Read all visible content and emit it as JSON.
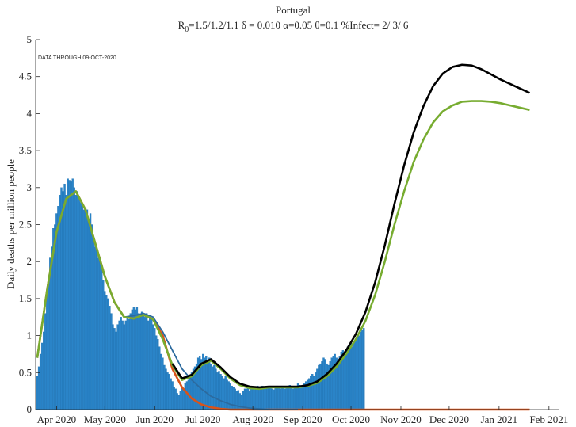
{
  "chart_data": {
    "type": "bar",
    "title": "Portugal",
    "subtitle": [
      "R",
      "0",
      "=1.5/1.2/1.1  δ = 0.010  α=0.05  θ=0.1  %Infect= 2/ 3/ 6"
    ],
    "annotation": "DATA THROUGH 09-OCT-2020",
    "ylabel": "Daily deaths per million people",
    "color": "#2a84c8",
    "x": [
      1,
      2,
      3,
      4,
      5,
      6,
      7,
      8,
      9,
      10,
      11,
      12,
      13,
      14,
      15,
      16,
      17,
      18,
      19,
      20,
      21,
      22,
      23,
      24,
      25,
      26,
      27,
      28,
      29,
      30,
      31,
      32,
      33,
      34,
      35,
      36,
      37,
      38,
      39,
      40,
      41,
      42,
      43,
      44,
      45,
      46,
      47,
      48,
      49,
      50,
      51,
      52,
      53,
      54,
      55,
      56,
      57,
      58,
      59,
      60,
      61,
      62,
      63,
      64,
      65,
      66,
      67,
      68,
      69,
      70,
      71,
      72,
      73,
      74,
      75,
      76,
      77,
      78,
      79,
      80,
      81,
      82,
      83,
      84,
      85,
      86,
      87,
      88,
      89,
      90,
      91,
      92,
      93,
      94,
      95,
      96,
      97,
      98,
      99,
      100,
      101,
      102,
      103,
      104,
      105,
      106,
      107,
      108,
      109,
      110,
      111,
      112,
      113,
      114,
      115,
      116,
      117,
      118,
      119,
      120,
      121,
      122,
      123,
      124,
      125,
      126,
      127,
      128,
      129,
      130,
      131,
      132,
      133,
      134,
      135,
      136,
      137,
      138,
      139,
      140,
      141,
      142,
      143,
      144,
      145,
      146,
      147,
      148,
      149,
      150,
      151,
      152,
      153,
      154,
      155,
      156,
      157,
      158,
      159,
      160,
      161,
      162,
      163,
      164,
      165,
      166,
      167,
      168,
      169,
      170,
      171,
      172,
      173,
      174,
      175,
      176,
      177,
      178,
      179,
      180,
      181,
      182,
      183,
      184,
      185,
      186,
      187,
      188,
      189,
      190,
      191,
      192,
      193,
      194,
      195,
      196,
      197,
      198,
      199,
      200,
      201,
      202,
      203,
      204
    ],
    "values": [
      0.45,
      0.58,
      0.75,
      0.9,
      1.05,
      1.3,
      1.55,
      1.8,
      2.05,
      2.2,
      2.45,
      2.5,
      2.65,
      2.75,
      2.9,
      3.0,
      2.95,
      3.05,
      2.9,
      3.12,
      3.1,
      3.08,
      3.12,
      3.0,
      2.9,
      2.95,
      2.85,
      2.8,
      2.75,
      2.7,
      2.72,
      2.7,
      2.55,
      2.65,
      2.5,
      2.3,
      2.2,
      2.15,
      2.05,
      2.0,
      1.9,
      1.75,
      1.6,
      1.55,
      1.5,
      1.4,
      1.3,
      1.15,
      1.1,
      1.05,
      1.15,
      1.2,
      1.25,
      1.2,
      1.15,
      1.2,
      1.25,
      1.22,
      1.3,
      1.35,
      1.38,
      1.35,
      1.38,
      1.3,
      1.28,
      1.32,
      1.3,
      1.25,
      1.3,
      1.2,
      1.25,
      1.22,
      1.15,
      1.1,
      1.0,
      0.95,
      0.85,
      0.75,
      0.7,
      0.6,
      0.55,
      0.5,
      0.48,
      0.42,
      0.38,
      0.3,
      0.28,
      0.22,
      0.2,
      0.25,
      0.3,
      0.28,
      0.35,
      0.38,
      0.4,
      0.45,
      0.5,
      0.55,
      0.58,
      0.62,
      0.7,
      0.72,
      0.68,
      0.75,
      0.7,
      0.72,
      0.65,
      0.7,
      0.62,
      0.58,
      0.6,
      0.55,
      0.5,
      0.52,
      0.48,
      0.45,
      0.42,
      0.45,
      0.4,
      0.38,
      0.35,
      0.32,
      0.3,
      0.28,
      0.25,
      0.26,
      0.22,
      0.2,
      0.25,
      0.28,
      0.28,
      0.3,
      0.25,
      0.28,
      0.3,
      0.27,
      0.3,
      0.32,
      0.28,
      0.3,
      0.32,
      0.3,
      0.28,
      0.3,
      0.32,
      0.3,
      0.28,
      0.27,
      0.3,
      0.32,
      0.3,
      0.28,
      0.32,
      0.3,
      0.28,
      0.3,
      0.31,
      0.33,
      0.3,
      0.28,
      0.3,
      0.32,
      0.35,
      0.33,
      0.3,
      0.32,
      0.35,
      0.38,
      0.4,
      0.42,
      0.45,
      0.48,
      0.45,
      0.5,
      0.55,
      0.6,
      0.62,
      0.65,
      0.7,
      0.68,
      0.62,
      0.6,
      0.65,
      0.7,
      0.72,
      0.75,
      0.7,
      0.68,
      0.72,
      0.78,
      0.8,
      0.75,
      0.82,
      0.85,
      0.88,
      0.9,
      0.85,
      0.92,
      0.95,
      0.98,
      1.0,
      1.05,
      1.08,
      1.1
    ],
    "lines": {
      "x": [
        1,
        7,
        13,
        19,
        25,
        31,
        37,
        43,
        49,
        55,
        61,
        67,
        73,
        79,
        85,
        91,
        97,
        103,
        109,
        115,
        121,
        127,
        133,
        139,
        145,
        151,
        157,
        163,
        169,
        175,
        181,
        187,
        193,
        199,
        205,
        211,
        217,
        223,
        229,
        235,
        241,
        247,
        253,
        259,
        265,
        271,
        277,
        283,
        289,
        295,
        301,
        307
      ],
      "series": [
        {
          "color": "#d95319",
          "values": [
            0.7,
            1.6,
            2.4,
            2.85,
            2.95,
            2.7,
            2.25,
            1.8,
            1.45,
            1.25,
            1.23,
            1.28,
            1.22,
            1.0,
            0.55,
            0.3,
            0.15,
            0.07,
            0.03,
            0.01,
            0,
            0,
            0,
            0,
            0,
            0,
            0,
            0,
            0,
            0,
            0,
            0,
            0,
            0,
            0,
            0,
            0,
            0,
            0,
            0,
            0,
            0,
            0,
            0,
            0,
            0,
            0,
            0,
            0,
            0,
            0,
            0
          ]
        },
        {
          "color": "#2c6a9e",
          "values": [
            0.7,
            1.6,
            2.4,
            2.85,
            2.95,
            2.7,
            2.25,
            1.8,
            1.45,
            1.25,
            1.27,
            1.3,
            1.25,
            1.05,
            0.8,
            0.55,
            0.4,
            0.28,
            0.18,
            0.12,
            0.07,
            0.04,
            0.02,
            0.01,
            0,
            0,
            0,
            0,
            null,
            null,
            null,
            null,
            null,
            null,
            null,
            null,
            null,
            null,
            null,
            null,
            null,
            null,
            null,
            null,
            null,
            null,
            null,
            null,
            null,
            null,
            null,
            null
          ]
        },
        {
          "color": "#77ac30",
          "values": [
            0.7,
            1.6,
            2.4,
            2.85,
            2.95,
            2.7,
            2.25,
            1.8,
            1.45,
            1.25,
            1.23,
            1.28,
            1.22,
            0.95,
            0.6,
            0.4,
            0.45,
            0.6,
            0.66,
            0.55,
            0.42,
            0.33,
            0.29,
            0.28,
            0.3,
            0.3,
            0.3,
            0.3,
            0.32,
            0.36,
            0.45,
            0.58,
            0.75,
            0.95,
            1.2,
            1.55,
            2.0,
            2.5,
            2.95,
            3.35,
            3.65,
            3.88,
            4.03,
            4.11,
            4.16,
            4.17,
            4.17,
            4.16,
            4.14,
            4.11,
            4.08,
            4.05
          ]
        },
        {
          "color": "#000000",
          "values": [
            null,
            null,
            null,
            null,
            null,
            null,
            null,
            null,
            null,
            null,
            null,
            null,
            null,
            null,
            0.62,
            0.42,
            0.47,
            0.62,
            0.68,
            0.57,
            0.44,
            0.35,
            0.31,
            0.3,
            0.31,
            0.31,
            0.31,
            0.31,
            0.33,
            0.38,
            0.48,
            0.62,
            0.8,
            1.02,
            1.32,
            1.72,
            2.22,
            2.78,
            3.3,
            3.75,
            4.1,
            4.37,
            4.54,
            4.63,
            4.66,
            4.65,
            4.6,
            4.53,
            4.46,
            4.4,
            4.34,
            4.28
          ]
        }
      ]
    },
    "xlim": [
      0,
      325
    ],
    "xticks": [
      {
        "value": 13,
        "label": "Apr 2020"
      },
      {
        "value": 43,
        "label": "May 2020"
      },
      {
        "value": 74,
        "label": "Jun 2020"
      },
      {
        "value": 104,
        "label": "Jul 2020"
      },
      {
        "value": 135,
        "label": "Aug 2020"
      },
      {
        "value": 166,
        "label": "Sep 2020"
      },
      {
        "value": 196,
        "label": "Oct 2020"
      },
      {
        "value": 227,
        "label": "Nov 2020"
      },
      {
        "value": 257,
        "label": "Dec 2020"
      },
      {
        "value": 288,
        "label": "Jan 2021"
      },
      {
        "value": 319,
        "label": "Feb 2021"
      }
    ],
    "ylim": [
      0,
      5
    ],
    "yticks": [
      0,
      0.5,
      1,
      1.5,
      2,
      2.5,
      3,
      3.5,
      4,
      4.5,
      5
    ]
  }
}
